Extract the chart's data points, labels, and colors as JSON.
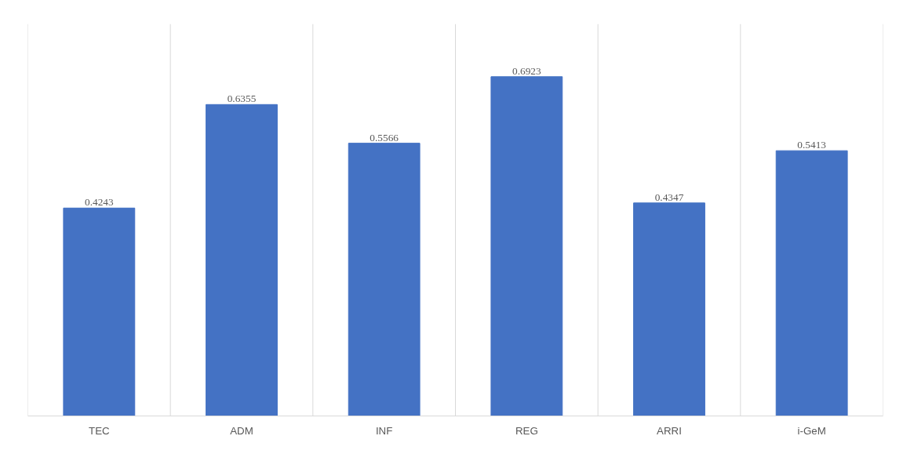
{
  "chart_data": {
    "type": "bar",
    "categories": [
      "TEC",
      "ADM",
      "INF",
      "REG",
      "ARRI",
      "i-GeM"
    ],
    "values": [
      0.4243,
      0.6355,
      0.5566,
      0.6923,
      0.4347,
      0.5413
    ],
    "color": "#4472c4",
    "ylim": [
      0,
      0.8
    ],
    "data_labels": true,
    "grid": "x",
    "tick_labels": "x"
  }
}
